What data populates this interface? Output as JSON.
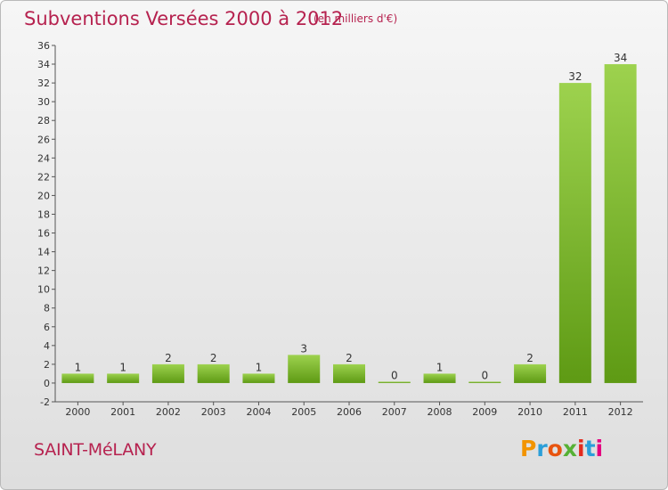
{
  "header": {
    "title": "Subventions Versées 2000 à 2012",
    "unit_note": "(en milliers d'€)"
  },
  "footer": {
    "commune": "SAINT-MéLANY",
    "logo_letters": [
      "P",
      "r",
      "o",
      "x",
      "i",
      "t",
      "i"
    ],
    "logo_colors": [
      "#f29400",
      "#2b9fd9",
      "#e8540f",
      "#56b135",
      "#e22b1e",
      "#2b9fd9",
      "#e4007f"
    ]
  },
  "colors": {
    "bar_light": "#9dd24e",
    "bar_dark": "#5e9a14",
    "title": "#b6224f",
    "axis": "#555555"
  },
  "chart_data": {
    "type": "bar",
    "categories": [
      "2000",
      "2001",
      "2002",
      "2003",
      "2004",
      "2005",
      "2006",
      "2007",
      "2008",
      "2009",
      "2010",
      "2011",
      "2012"
    ],
    "values": [
      1,
      1,
      2,
      2,
      1,
      3,
      2,
      0,
      1,
      0,
      2,
      32,
      34
    ],
    "data_labels": [
      "1",
      "1",
      "2",
      "2",
      "1",
      "3",
      "2",
      "0",
      "1",
      "0",
      "2",
      "32",
      "34"
    ],
    "ylim": [
      -2,
      36
    ],
    "yticks": [
      "-2",
      "0",
      "2",
      "4",
      "6",
      "8",
      "10",
      "12",
      "14",
      "16",
      "18",
      "20",
      "22",
      "24",
      "26",
      "28",
      "30",
      "32",
      "34",
      "36"
    ],
    "title": "Subventions Versées 2000 à 2012",
    "xlabel": "",
    "ylabel": "",
    "grid": false,
    "legend": "none"
  }
}
